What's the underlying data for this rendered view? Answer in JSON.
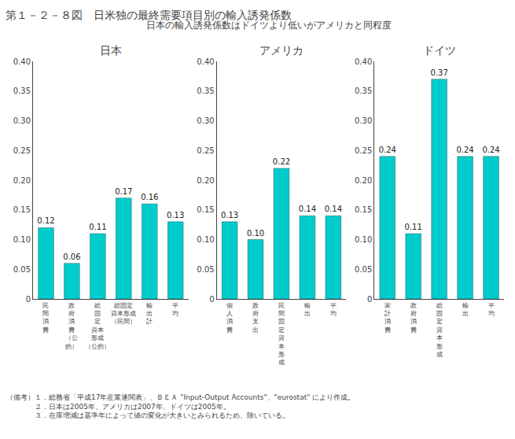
{
  "title": "第１－２－８図　日米独の最終需要項目別の輸入誘発係数",
  "subtitle": "日本の輸入誘発係数はドイツより低いがアメリカと同程度",
  "annotations": [
    "（備考）１．総務省「平成17年産業連関表」、ＢＥＡ \"Input-Output Accounts\"、\"eurostat\" により作成。",
    "　　　　２．日本は2005年、アメリカは2007年、ドイツは2005年。",
    "　　　　３．在庫増減は基準年によって値の変化が大きいとみられるため、除いている。"
  ],
  "chart_data": [
    {
      "type": "bar",
      "title": "日本",
      "categories": [
        "民\n間\n消\n費",
        "政\n府\n消\n費\n（公\n的）",
        "総\n固\n定\n資本\n形成\n（公的）",
        "総固定\n資本形成\n（民間）",
        "輸\n出\n計",
        "平\n均"
      ],
      "values": [
        0.12,
        0.06,
        0.11,
        0.17,
        0.16,
        0.13
      ],
      "value_labels": [
        "0.12",
        "0.06",
        "0.11",
        "0.17",
        "0.16",
        "0.13"
      ],
      "color": "#00CCCC",
      "data_labels": true,
      "grid": false,
      "ylim": [
        0,
        0.4
      ],
      "yticks": [
        0,
        0.05,
        {
          "value": 0.1,
          "label": "0.10"
        },
        0.15,
        {
          "value": 0.2,
          "label": "0.20"
        },
        0.25,
        {
          "value": 0.3,
          "label": "0.30"
        },
        0.35,
        {
          "value": 0.4,
          "label": "0.40"
        }
      ]
    },
    {
      "type": "bar",
      "title": "アメリカ",
      "categories": [
        "個\n人\n消\n費",
        "政\n府\n支\n出",
        "民\n間\n固\n定\n資\n本\n形\n成",
        "輸\n出",
        "平\n均"
      ],
      "values": [
        0.13,
        0.1,
        0.22,
        0.14,
        0.14
      ],
      "value_labels": [
        "0.13",
        "0.10",
        "0.22",
        "0.14",
        "0.14"
      ],
      "color": "#00CCCC",
      "data_labels": true,
      "grid": false,
      "ylim": [
        0,
        0.4
      ],
      "yticks": [
        0,
        0.05,
        {
          "value": 0.1,
          "label": "0.10"
        },
        0.15,
        {
          "value": 0.2,
          "label": "0.20"
        },
        0.25,
        {
          "value": 0.3,
          "label": "0.30"
        },
        0.35,
        {
          "value": 0.4,
          "label": "0.40"
        }
      ]
    },
    {
      "type": "bar",
      "title": "ドイツ",
      "categories": [
        "家\n計\n消\n費",
        "政\n府\n消\n費",
        "総\n固\n定\n資\n本\n形\n成",
        "輸\n出",
        "平\n均"
      ],
      "values": [
        0.24,
        0.11,
        0.37,
        0.24,
        0.24
      ],
      "value_labels": [
        "0.24",
        "0.11",
        "0.37",
        "0.24",
        "0.24"
      ],
      "color": "#00CCCC",
      "data_labels": true,
      "grid": false,
      "ylim": [
        0,
        0.4
      ],
      "yticks": [
        0,
        0.05,
        {
          "value": 0.1,
          "label": "0.10"
        },
        0.15,
        {
          "value": 0.2,
          "label": "0.20"
        },
        0.25,
        {
          "value": 0.3,
          "label": "0.30"
        },
        0.35,
        {
          "value": 0.4,
          "label": "0.40"
        }
      ]
    }
  ]
}
